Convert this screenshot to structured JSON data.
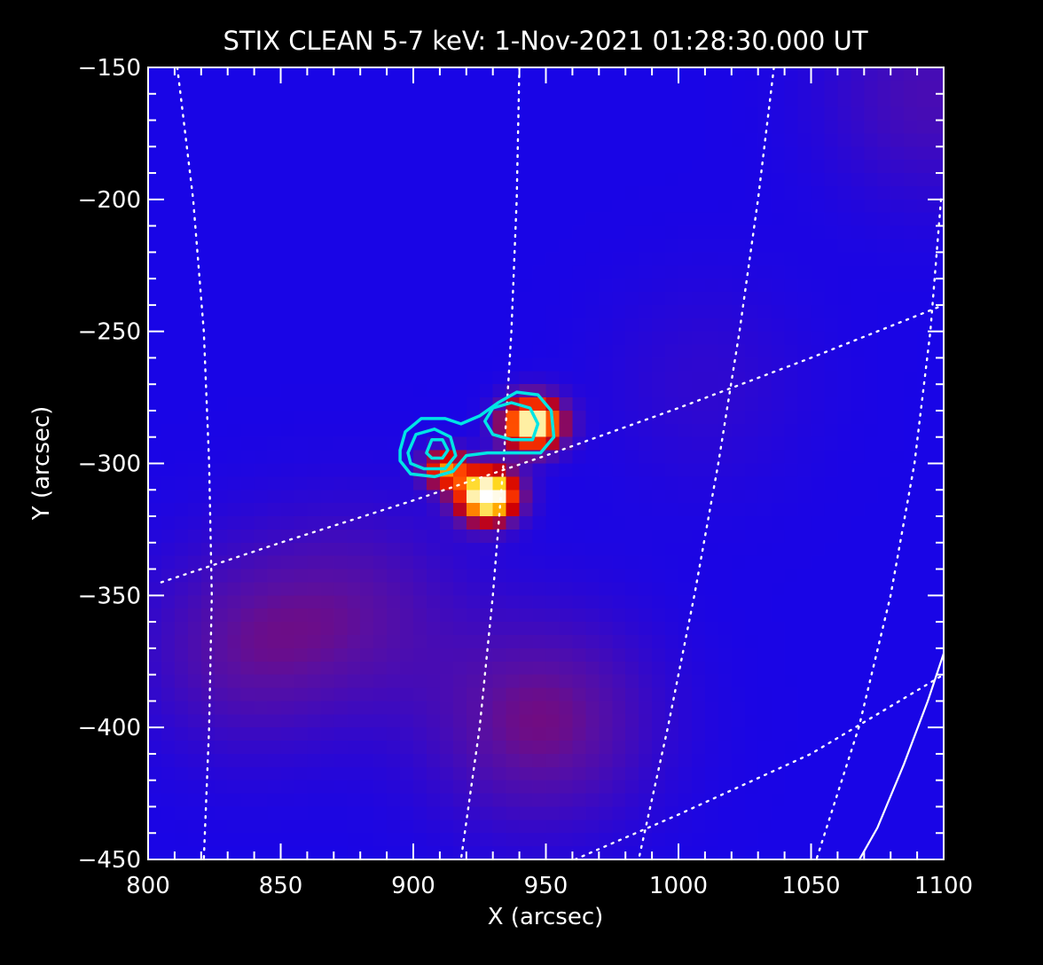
{
  "chart_data": {
    "type": "heatmap",
    "title": "STIX CLEAN 5-7 keV:  1-Nov-2021 01:28:30.000 UT",
    "xlabel": "X (arcsec)",
    "ylabel": "Y (arcsec)",
    "xlim": [
      800,
      1100
    ],
    "ylim": [
      -450,
      -150
    ],
    "xticks": [
      800,
      850,
      900,
      950,
      1000,
      1050,
      1100
    ],
    "yticks": [
      -450,
      -400,
      -350,
      -300,
      -250,
      -200,
      -150
    ],
    "xtick_labels": [
      "800",
      "850",
      "900",
      "950",
      "1000",
      "1050",
      "1100"
    ],
    "ytick_labels": [
      "−450",
      "−400",
      "−350",
      "−300",
      "−250",
      "−200",
      "−150"
    ],
    "colormap": "blue-red-yellow-white",
    "sources": [
      {
        "name": "primary",
        "x": 928,
        "y": -312,
        "sigma_x": 8,
        "sigma_y": 7,
        "amp": 1.0
      },
      {
        "name": "secondary",
        "x": 945,
        "y": -285,
        "sigma_x": 8,
        "sigma_y": 7,
        "amp": 0.9
      },
      {
        "name": "tertiary",
        "x": 912,
        "y": -302,
        "sigma_x": 6,
        "sigma_y": 5,
        "amp": 0.55
      }
    ],
    "background_features": [
      {
        "x": 835,
        "y": -370,
        "level": 0.28
      },
      {
        "x": 880,
        "y": -355,
        "level": 0.26
      },
      {
        "x": 940,
        "y": -400,
        "level": 0.25
      },
      {
        "x": 960,
        "y": -395,
        "level": 0.22
      },
      {
        "x": 1010,
        "y": -270,
        "level": 0.18
      },
      {
        "x": 1095,
        "y": -160,
        "level": 0.25
      }
    ],
    "contours": [
      {
        "color": "#00e5e5",
        "points": [
          [
            895,
            -295
          ],
          [
            897,
            -288
          ],
          [
            903,
            -283
          ],
          [
            912,
            -283
          ],
          [
            918,
            -285
          ],
          [
            925,
            -282
          ],
          [
            932,
            -277
          ],
          [
            939,
            -273
          ],
          [
            947,
            -274
          ],
          [
            952,
            -280
          ],
          [
            953,
            -290
          ],
          [
            948,
            -296
          ],
          [
            938,
            -296
          ],
          [
            928,
            -296
          ],
          [
            920,
            -297
          ],
          [
            915,
            -303
          ],
          [
            908,
            -305
          ],
          [
            899,
            -304
          ],
          [
            895,
            -299
          ]
        ]
      },
      {
        "color": "#00e5e5",
        "points": [
          [
            898,
            -296
          ],
          [
            901,
            -289
          ],
          [
            908,
            -287
          ],
          [
            914,
            -290
          ],
          [
            916,
            -297
          ],
          [
            912,
            -302
          ],
          [
            904,
            -302
          ],
          [
            899,
            -300
          ]
        ]
      },
      {
        "color": "#00e5e5",
        "points": [
          [
            927,
            -284
          ],
          [
            930,
            -279
          ],
          [
            937,
            -277
          ],
          [
            944,
            -279
          ],
          [
            947,
            -285
          ],
          [
            945,
            -291
          ],
          [
            937,
            -291
          ],
          [
            930,
            -289
          ]
        ]
      },
      {
        "color": "#00e5e5",
        "points": [
          [
            905,
            -296
          ],
          [
            907,
            -291
          ],
          [
            911,
            -291
          ],
          [
            913,
            -295
          ],
          [
            911,
            -298
          ],
          [
            907,
            -298
          ]
        ]
      }
    ],
    "grid_lines": [
      {
        "style": "dotted",
        "color": "#ffffff",
        "points": [
          [
            811,
            -150
          ],
          [
            817,
            -200
          ],
          [
            821,
            -250
          ],
          [
            823,
            -300
          ],
          [
            824,
            -350
          ],
          [
            823,
            -400
          ],
          [
            821,
            -450
          ]
        ]
      },
      {
        "style": "dotted",
        "color": "#ffffff",
        "points": [
          [
            940,
            -150
          ],
          [
            939,
            -200
          ],
          [
            937,
            -250
          ],
          [
            934,
            -300
          ],
          [
            930,
            -350
          ],
          [
            925,
            -400
          ],
          [
            918,
            -450
          ]
        ]
      },
      {
        "style": "dotted",
        "color": "#ffffff",
        "points": [
          [
            1036,
            -150
          ],
          [
            1030,
            -200
          ],
          [
            1023,
            -250
          ],
          [
            1015,
            -300
          ],
          [
            1006,
            -350
          ],
          [
            996,
            -400
          ],
          [
            985,
            -450
          ]
        ]
      },
      {
        "style": "dotted",
        "color": "#ffffff",
        "points": [
          [
            1099,
            -200
          ],
          [
            1095,
            -250
          ],
          [
            1089,
            -300
          ],
          [
            1080,
            -350
          ],
          [
            1068,
            -400
          ],
          [
            1052,
            -450
          ]
        ]
      },
      {
        "style": "dotted",
        "color": "#ffffff",
        "points": [
          [
            805,
            -345
          ],
          [
            850,
            -330
          ],
          [
            900,
            -314
          ],
          [
            950,
            -297
          ],
          [
            1000,
            -279
          ],
          [
            1050,
            -260
          ],
          [
            1100,
            -240
          ]
        ]
      },
      {
        "style": "dotted",
        "color": "#ffffff",
        "points": [
          [
            961,
            -450
          ],
          [
            1000,
            -433
          ],
          [
            1050,
            -410
          ],
          [
            1100,
            -380
          ]
        ]
      },
      {
        "style": "solid",
        "color": "#ffffff",
        "points": [
          [
            1066,
            -454
          ],
          [
            1075,
            -438
          ],
          [
            1085,
            -414
          ],
          [
            1094,
            -390
          ],
          [
            1100,
            -372
          ]
        ]
      }
    ]
  }
}
